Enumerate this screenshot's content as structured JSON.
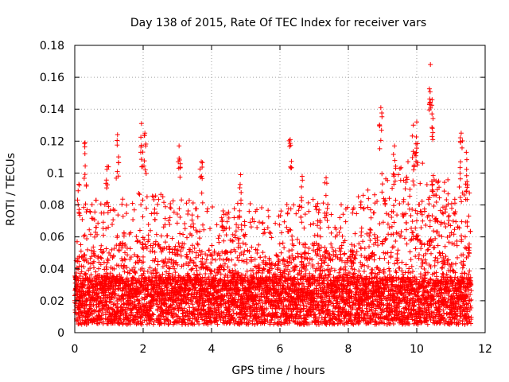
{
  "chart_data": {
    "type": "scatter",
    "title": "Day 138 of 2015, Rate Of TEC Index for receiver vars",
    "xlabel": "GPS time / hours",
    "ylabel": "ROTI / TECUs",
    "xlim": [
      0,
      12
    ],
    "ylim": [
      0,
      0.18
    ],
    "xticks": [
      "0",
      "2",
      "4",
      "6",
      "8",
      "10",
      "12"
    ],
    "yticks": [
      "0",
      "0.02",
      "0.04",
      "0.06",
      "0.08",
      "0.1",
      "0.12",
      "0.14",
      "0.16",
      "0.18"
    ],
    "grid": true,
    "marker": "+",
    "color": "#ff0000",
    "series": [
      {
        "name": "ROTI",
        "x_range": [
          0,
          11.6
        ],
        "sample_interval_hours": 0.005,
        "baseline_envelope": [
          [
            0.0,
            0.05
          ],
          [
            1.0,
            0.055
          ],
          [
            2.0,
            0.06
          ],
          [
            3.0,
            0.055
          ],
          [
            4.0,
            0.05
          ],
          [
            5.0,
            0.052
          ],
          [
            6.0,
            0.05
          ],
          [
            7.0,
            0.055
          ],
          [
            8.0,
            0.05
          ],
          [
            9.0,
            0.07
          ],
          [
            10.0,
            0.08
          ],
          [
            11.0,
            0.065
          ],
          [
            11.6,
            0.07
          ]
        ],
        "peaks": [
          {
            "x": 0.12,
            "y": 0.093
          },
          {
            "x": 0.3,
            "y": 0.119
          },
          {
            "x": 0.95,
            "y": 0.104
          },
          {
            "x": 1.25,
            "y": 0.124
          },
          {
            "x": 1.95,
            "y": 0.131
          },
          {
            "x": 2.05,
            "y": 0.125
          },
          {
            "x": 3.05,
            "y": 0.117
          },
          {
            "x": 3.7,
            "y": 0.107
          },
          {
            "x": 4.85,
            "y": 0.099
          },
          {
            "x": 6.3,
            "y": 0.121
          },
          {
            "x": 6.65,
            "y": 0.098
          },
          {
            "x": 7.35,
            "y": 0.097
          },
          {
            "x": 8.95,
            "y": 0.141
          },
          {
            "x": 9.35,
            "y": 0.117
          },
          {
            "x": 9.9,
            "y": 0.13
          },
          {
            "x": 10.0,
            "y": 0.132
          },
          {
            "x": 10.4,
            "y": 0.168
          },
          {
            "x": 10.45,
            "y": 0.146
          },
          {
            "x": 11.3,
            "y": 0.125
          },
          {
            "x": 11.45,
            "y": 0.113
          }
        ]
      }
    ]
  }
}
